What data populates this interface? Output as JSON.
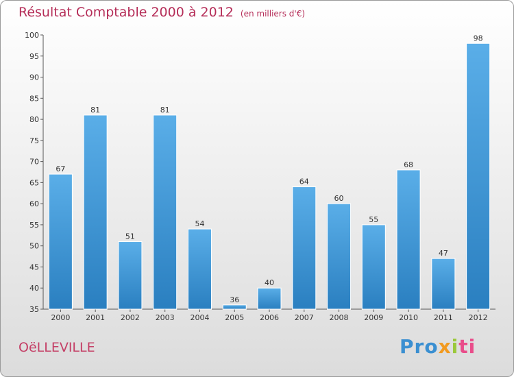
{
  "chart_data": {
    "type": "bar",
    "title": "Résultat Comptable 2000 à 2012",
    "subtitle": "(en milliers d'€)",
    "categories": [
      "2000",
      "2001",
      "2002",
      "2003",
      "2004",
      "2005",
      "2006",
      "2007",
      "2008",
      "2009",
      "2010",
      "2011",
      "2012"
    ],
    "values": [
      67,
      81,
      51,
      81,
      54,
      36,
      40,
      64,
      60,
      55,
      68,
      47,
      98
    ],
    "ylim": [
      35,
      100
    ],
    "yticks": [
      35,
      40,
      45,
      50,
      55,
      60,
      65,
      70,
      75,
      80,
      85,
      90,
      95,
      100
    ],
    "xlabel": "",
    "ylabel": "",
    "grid": false,
    "bar_color": "#3d95d6"
  },
  "commune": "OëLLEVILLE",
  "logo": {
    "parts": [
      "Pro",
      "x",
      "i",
      "ti"
    ],
    "colors": [
      "#3a8fd1",
      "#f29a1f",
      "#9bc83b",
      "#e94d8a"
    ]
  }
}
